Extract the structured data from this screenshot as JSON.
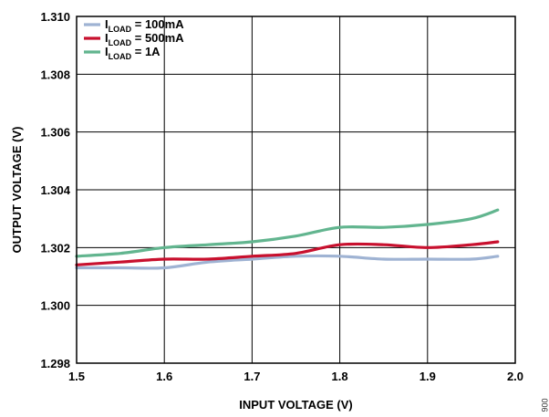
{
  "chart_data": {
    "type": "line",
    "title": "",
    "xlabel": "INPUT VOLTAGE (V)",
    "ylabel": "OUTPUT VOLTAGE (V)",
    "xlim": [
      1.5,
      2.0
    ],
    "ylim": [
      1.298,
      1.31
    ],
    "x_ticks": [
      "1.5",
      "1.6",
      "1.7",
      "1.8",
      "1.9",
      "2.0"
    ],
    "y_ticks": [
      "1.298",
      "1.300",
      "1.302",
      "1.304",
      "1.306",
      "1.308",
      "1.310"
    ],
    "grid": true,
    "legend_position": "top-left",
    "series": [
      {
        "name_main": "I",
        "name_sub": "LOAD",
        "name_rest": " = 100mA",
        "color": "#9fb3d3",
        "x": [
          1.5,
          1.55,
          1.6,
          1.65,
          1.7,
          1.75,
          1.8,
          1.85,
          1.9,
          1.95,
          1.98
        ],
        "y": [
          1.3013,
          1.3013,
          1.3013,
          1.3015,
          1.3016,
          1.3017,
          1.3017,
          1.3016,
          1.3016,
          1.3016,
          1.3017
        ]
      },
      {
        "name_main": "I",
        "name_sub": "LOAD",
        "name_rest": " = 500mA",
        "color": "#c8102e",
        "x": [
          1.5,
          1.55,
          1.6,
          1.65,
          1.7,
          1.75,
          1.8,
          1.85,
          1.9,
          1.95,
          1.98
        ],
        "y": [
          1.3014,
          1.3015,
          1.3016,
          1.3016,
          1.3017,
          1.3018,
          1.3021,
          1.3021,
          1.302,
          1.3021,
          1.3022
        ]
      },
      {
        "name_main": "I",
        "name_sub": "LOAD",
        "name_rest": " = 1A",
        "color": "#62b58f",
        "x": [
          1.5,
          1.55,
          1.6,
          1.65,
          1.7,
          1.75,
          1.8,
          1.85,
          1.9,
          1.95,
          1.98
        ],
        "y": [
          1.3017,
          1.3018,
          1.302,
          1.3021,
          1.3022,
          1.3024,
          1.3027,
          1.3027,
          1.3028,
          1.303,
          1.3033
        ]
      }
    ]
  },
  "figure_id": "006"
}
